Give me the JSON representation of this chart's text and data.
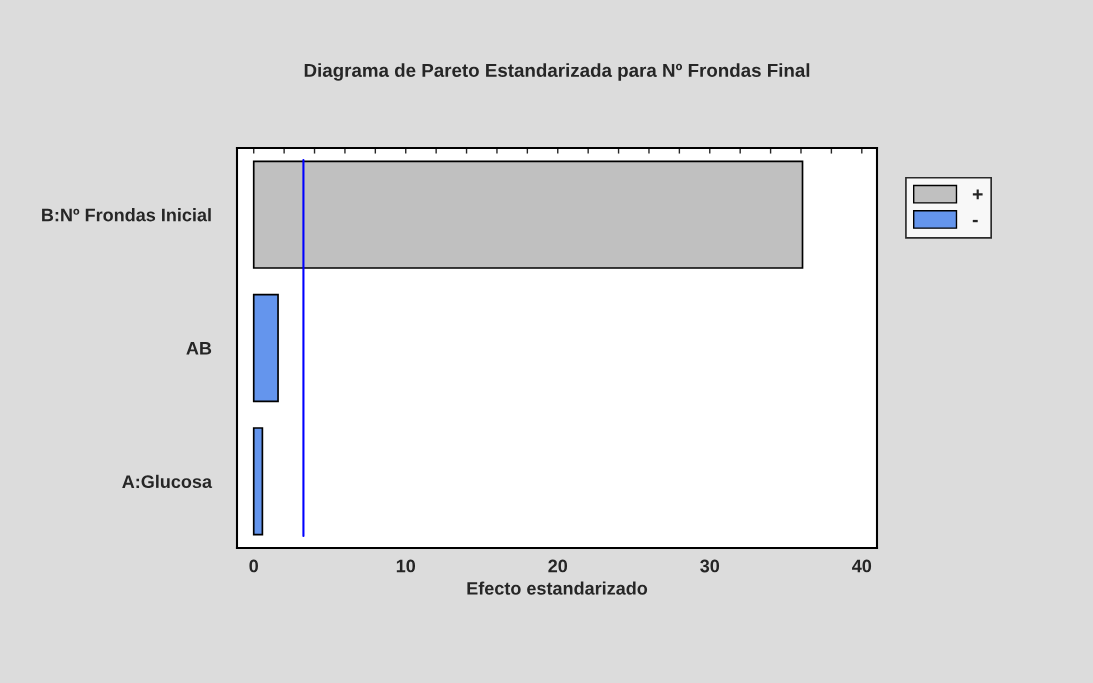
{
  "chart_data": {
    "type": "bar",
    "orientation": "horizontal",
    "title": "Diagrama de Pareto Estandarizada para Nº Frondas Final",
    "xlabel": "Efecto estandarizado",
    "categories": [
      "B:Nº Frondas Inicial",
      "AB",
      "A:Glucosa"
    ],
    "series": [
      {
        "name": "+",
        "color": "#c0c0c0",
        "values": [
          36.1,
          null,
          null
        ]
      },
      {
        "name": "-",
        "color": "#6495ed",
        "values": [
          null,
          1.6,
          0.57
        ]
      }
    ],
    "xlim": [
      -1.1,
      41.0
    ],
    "xticks": [
      0,
      {
        "value": 2,
        "label": null
      },
      {
        "value": 4,
        "label": null
      },
      {
        "value": 6,
        "label": null
      },
      {
        "value": 8,
        "label": null
      },
      10,
      {
        "value": 12,
        "label": null
      },
      {
        "value": 14,
        "label": null
      },
      {
        "value": 16,
        "label": null
      },
      {
        "value": 18,
        "label": null
      },
      20,
      {
        "value": 22,
        "label": null
      },
      {
        "value": 24,
        "label": null
      },
      {
        "value": 26,
        "label": null
      },
      {
        "value": 28,
        "label": null
      },
      30,
      {
        "value": 32,
        "label": null
      },
      {
        "value": 34,
        "label": null
      },
      {
        "value": 36,
        "label": null
      },
      {
        "value": 38,
        "label": null
      },
      40
    ],
    "ref_lines": [
      {
        "axis": "x",
        "value": 3.27,
        "color": "#0000ff"
      }
    ],
    "grid": false,
    "legend": "top right"
  }
}
